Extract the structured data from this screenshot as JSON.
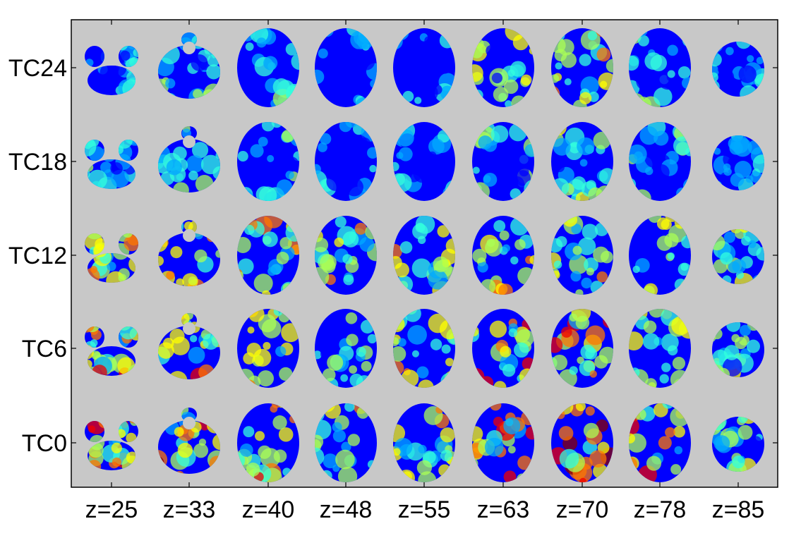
{
  "colors": {
    "panel_background": "#c8c8c8",
    "axis": "#000000",
    "colormap": [
      "#00008f",
      "#0000ff",
      "#00aaff",
      "#33ffdd",
      "#aaff55",
      "#ffff00",
      "#ff7700",
      "#ee0000",
      "#880000"
    ]
  },
  "rows": [
    "TC24",
    "TC18",
    "TC12",
    "TC6",
    "TC0"
  ],
  "columns": [
    "z=25",
    "z=33",
    "z=40",
    "z=48",
    "z=55",
    "z=63",
    "z=70",
    "z=78",
    "z=85"
  ],
  "slice_shape_by_column": [
    "temporal-lobes-and-cerebellum",
    "brainstem-notch",
    "full-axial",
    "full-axial",
    "full-axial",
    "full-axial",
    "full-axial",
    "full-axial",
    "small-axial"
  ],
  "activation_by_row": [
    [
      0.2,
      0.3,
      0.25,
      0.15,
      0.15,
      0.4,
      0.45,
      0.3,
      0.2
    ],
    [
      0.25,
      0.3,
      0.25,
      0.15,
      0.2,
      0.3,
      0.35,
      0.25,
      0.2
    ],
    [
      0.5,
      0.55,
      0.5,
      0.5,
      0.45,
      0.5,
      0.45,
      0.4,
      0.35
    ],
    [
      0.55,
      0.55,
      0.55,
      0.45,
      0.45,
      0.6,
      0.65,
      0.45,
      0.4
    ],
    [
      0.55,
      0.65,
      0.55,
      0.45,
      0.45,
      0.65,
      0.8,
      0.55,
      0.4
    ]
  ]
}
